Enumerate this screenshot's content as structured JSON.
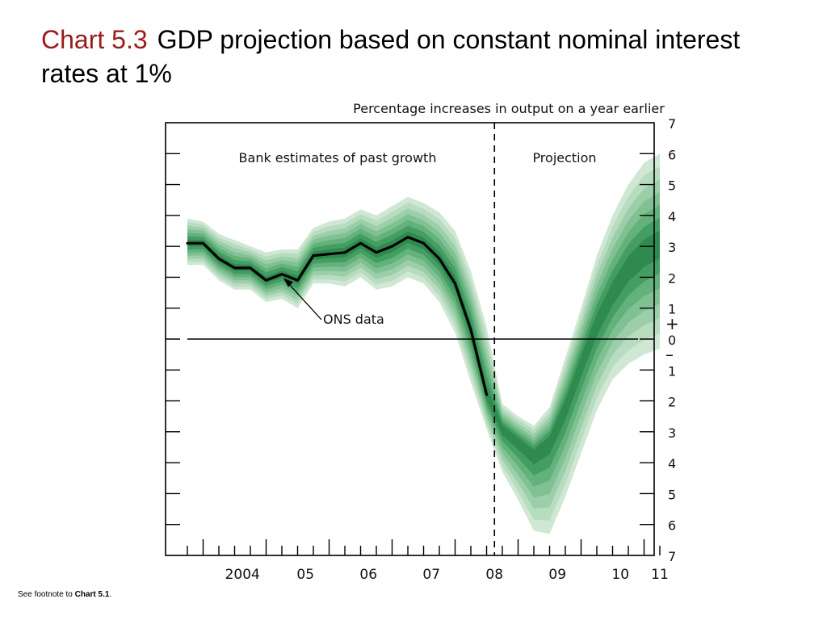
{
  "slide": {
    "chart_number": "Chart 5.3",
    "title": "GDP projection based on constant nominal interest rates at 1%",
    "footnote_prefix": "See footnote to ",
    "footnote_ref": "Chart 5.1",
    "footnote_suffix": "."
  },
  "colors": {
    "title_number": "#9b1b1b",
    "fan_bands": [
      "#cfe7d3",
      "#b7dcbf",
      "#9ccfa9",
      "#80c193",
      "#63b17b",
      "#449d62",
      "#2f8a4f"
    ],
    "central_line": "#000000"
  },
  "chart_data": {
    "type": "area",
    "subtitle": "Percentage increases in output on a year earlier",
    "region_labels": {
      "past": "Bank estimates of past growth",
      "projection": "Projection"
    },
    "annotation": "ONS data",
    "x_tick_labels": [
      "2004",
      "05",
      "06",
      "07",
      "08",
      "09",
      "10",
      "11"
    ],
    "y_tick_labels": [
      "7",
      "6",
      "5",
      "4",
      "3",
      "2",
      "1",
      "0",
      "1",
      "2",
      "3",
      "4",
      "5",
      "6",
      "7"
    ],
    "y_sign_labels": {
      "plus": "+",
      "minus": "–"
    },
    "ylim": [
      -7,
      7
    ],
    "projection_start": "2008 Q3",
    "ons_data": {
      "x": [
        "2003 Q3",
        "2003 Q4",
        "2004 Q1",
        "2004 Q2",
        "2004 Q3",
        "2004 Q4",
        "2005 Q1",
        "2005 Q2",
        "2005 Q3",
        "2005 Q4",
        "2006 Q1",
        "2006 Q2",
        "2006 Q3",
        "2006 Q4",
        "2007 Q1",
        "2007 Q2",
        "2007 Q3",
        "2007 Q4",
        "2008 Q1",
        "2008 Q2"
      ],
      "y": [
        3.1,
        3.1,
        2.6,
        2.3,
        2.3,
        1.9,
        2.1,
        1.9,
        2.7,
        2.75,
        2.8,
        3.1,
        2.8,
        3.0,
        3.3,
        3.1,
        2.6,
        1.8,
        0.3,
        -1.8
      ]
    },
    "fan_chart": {
      "x": [
        "2003 Q3",
        "2003 Q4",
        "2004 Q1",
        "2004 Q2",
        "2004 Q3",
        "2004 Q4",
        "2005 Q1",
        "2005 Q2",
        "2005 Q3",
        "2005 Q4",
        "2006 Q1",
        "2006 Q2",
        "2006 Q3",
        "2006 Q4",
        "2007 Q1",
        "2007 Q2",
        "2007 Q3",
        "2007 Q4",
        "2008 Q1",
        "2008 Q2",
        "2008 Q3",
        "2008 Q4",
        "2009 Q1",
        "2009 Q2",
        "2009 Q3",
        "2009 Q4",
        "2010 Q1",
        "2010 Q2",
        "2010 Q3",
        "2010 Q4",
        "2011 Q1"
      ],
      "central": [
        3.1,
        3.1,
        2.6,
        2.3,
        2.3,
        1.9,
        2.1,
        1.9,
        2.7,
        2.75,
        2.8,
        3.1,
        2.8,
        3.0,
        3.3,
        3.1,
        2.6,
        1.8,
        0.3,
        -1.8,
        -2.9,
        -3.3,
        -3.7,
        -3.3,
        -2.2,
        -0.8,
        0.5,
        1.5,
        2.3,
        2.8,
        3.1
      ],
      "outer_upper": [
        3.9,
        3.8,
        3.4,
        3.2,
        3.0,
        2.8,
        2.9,
        2.9,
        3.6,
        3.8,
        3.9,
        4.2,
        4.0,
        4.3,
        4.6,
        4.4,
        4.1,
        3.5,
        2.2,
        0.4,
        -2.1,
        -2.5,
        -2.8,
        -2.2,
        -0.6,
        1.0,
        2.7,
        4.0,
        5.0,
        5.7,
        6.0
      ],
      "outer_lower": [
        2.4,
        2.4,
        1.9,
        1.6,
        1.6,
        1.2,
        1.3,
        1.0,
        1.8,
        1.8,
        1.7,
        2.0,
        1.6,
        1.7,
        2.0,
        1.8,
        1.2,
        0.2,
        -1.4,
        -2.9,
        -4.3,
        -5.2,
        -6.2,
        -6.3,
        -5.1,
        -3.7,
        -2.3,
        -1.3,
        -0.8,
        -0.5,
        -0.3
      ]
    }
  }
}
